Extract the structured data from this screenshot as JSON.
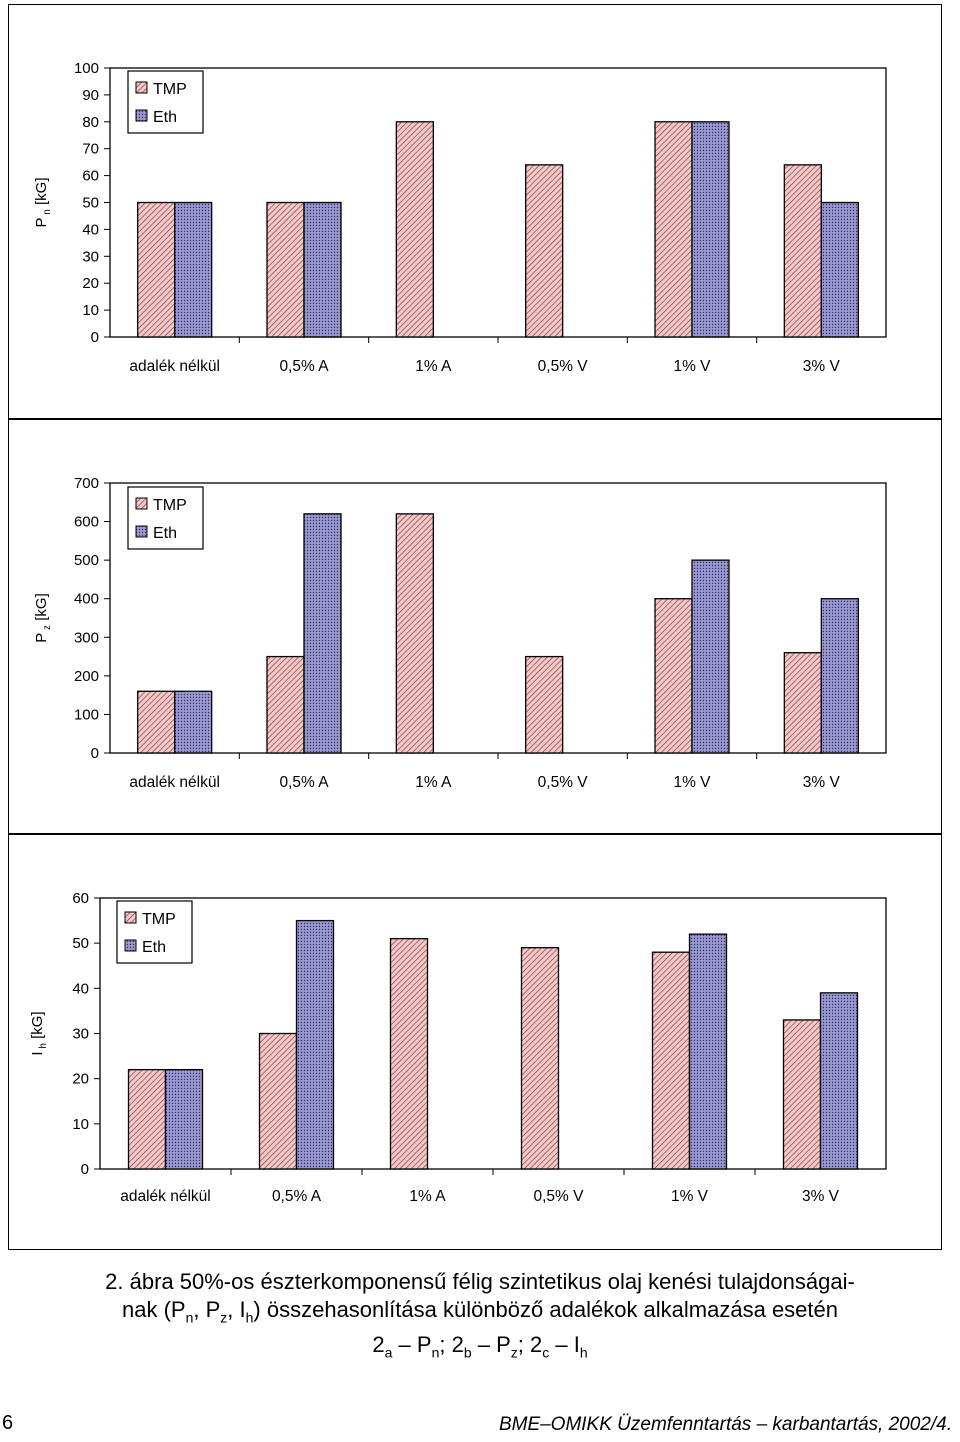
{
  "colors": {
    "tmp_fill": "#f2c8c8",
    "tmp_hatch": "#7a2b2b",
    "eth_fill": "#9a9ad0",
    "eth_hatch": "#2d2d6a",
    "frame": "#000000"
  },
  "chart_data": [
    {
      "type": "bar",
      "ylabel_main": "P",
      "ylabel_sub": "n",
      "ylabel_unit": "[kG]",
      "categories": [
        "adalék nélkül",
        "0,5% A",
        "1% A",
        "0,5% V",
        "1% V",
        "3% V"
      ],
      "ylim": [
        0,
        100
      ],
      "yticks": [
        0,
        10,
        20,
        30,
        40,
        50,
        60,
        70,
        80,
        90,
        100
      ],
      "legend": "top-left",
      "series": [
        {
          "name": "TMP",
          "values": [
            50,
            50,
            80,
            64,
            80,
            64
          ]
        },
        {
          "name": "Eth",
          "values": [
            50,
            50,
            null,
            null,
            80,
            50
          ]
        }
      ]
    },
    {
      "type": "bar",
      "ylabel_main": "P",
      "ylabel_sub": "z",
      "ylabel_unit": "[kG]",
      "categories": [
        "adalék nélkül",
        "0,5% A",
        "1% A",
        "0,5% V",
        "1% V",
        "3% V"
      ],
      "ylim": [
        0,
        700
      ],
      "yticks": [
        0,
        100,
        200,
        300,
        400,
        500,
        600,
        700
      ],
      "legend": "top-left",
      "series": [
        {
          "name": "TMP",
          "values": [
            160,
            250,
            620,
            250,
            400,
            260
          ]
        },
        {
          "name": "Eth",
          "values": [
            160,
            620,
            null,
            null,
            500,
            400
          ]
        }
      ]
    },
    {
      "type": "bar",
      "ylabel_main": "I",
      "ylabel_sub": "h",
      "ylabel_unit": "[kG]",
      "categories": [
        "adalék nélkül",
        "0,5% A",
        "1% A",
        "0,5% V",
        "1% V",
        "3% V"
      ],
      "ylim": [
        0,
        60
      ],
      "yticks": [
        0,
        10,
        20,
        30,
        40,
        50,
        60
      ],
      "legend": "top-left",
      "series": [
        {
          "name": "TMP",
          "values": [
            22,
            30,
            51,
            49,
            48,
            33
          ]
        },
        {
          "name": "Eth",
          "values": [
            22,
            55,
            null,
            null,
            52,
            39
          ]
        }
      ]
    }
  ],
  "caption": {
    "line1": "2. ábra 50%-os észterkomponensű félig szintetikus olaj kenési tulajdonságai-",
    "line2_a": "nak (P",
    "line2_sub1": "n",
    "line2_b": ", P",
    "line2_sub2": "z",
    "line2_c": ", I",
    "line2_sub3": "h",
    "line2_d": ") összehasonlítása különböző adalékok alkalmazása esetén",
    "line3_a": "2",
    "line3_sub1": "a",
    "line3_b": " – P",
    "line3_sub2": "n",
    "line3_c": "; 2",
    "line3_sub3": "b",
    "line3_d": " – P",
    "line3_sub4": "z",
    "line3_e": "; 2",
    "line3_sub5": "c",
    "line3_f": " – I",
    "line3_sub6": "h"
  },
  "footer": {
    "page_number": "6",
    "source": "BME–OMIKK Üzemfenntartás – karbantartás, 2002/4."
  }
}
